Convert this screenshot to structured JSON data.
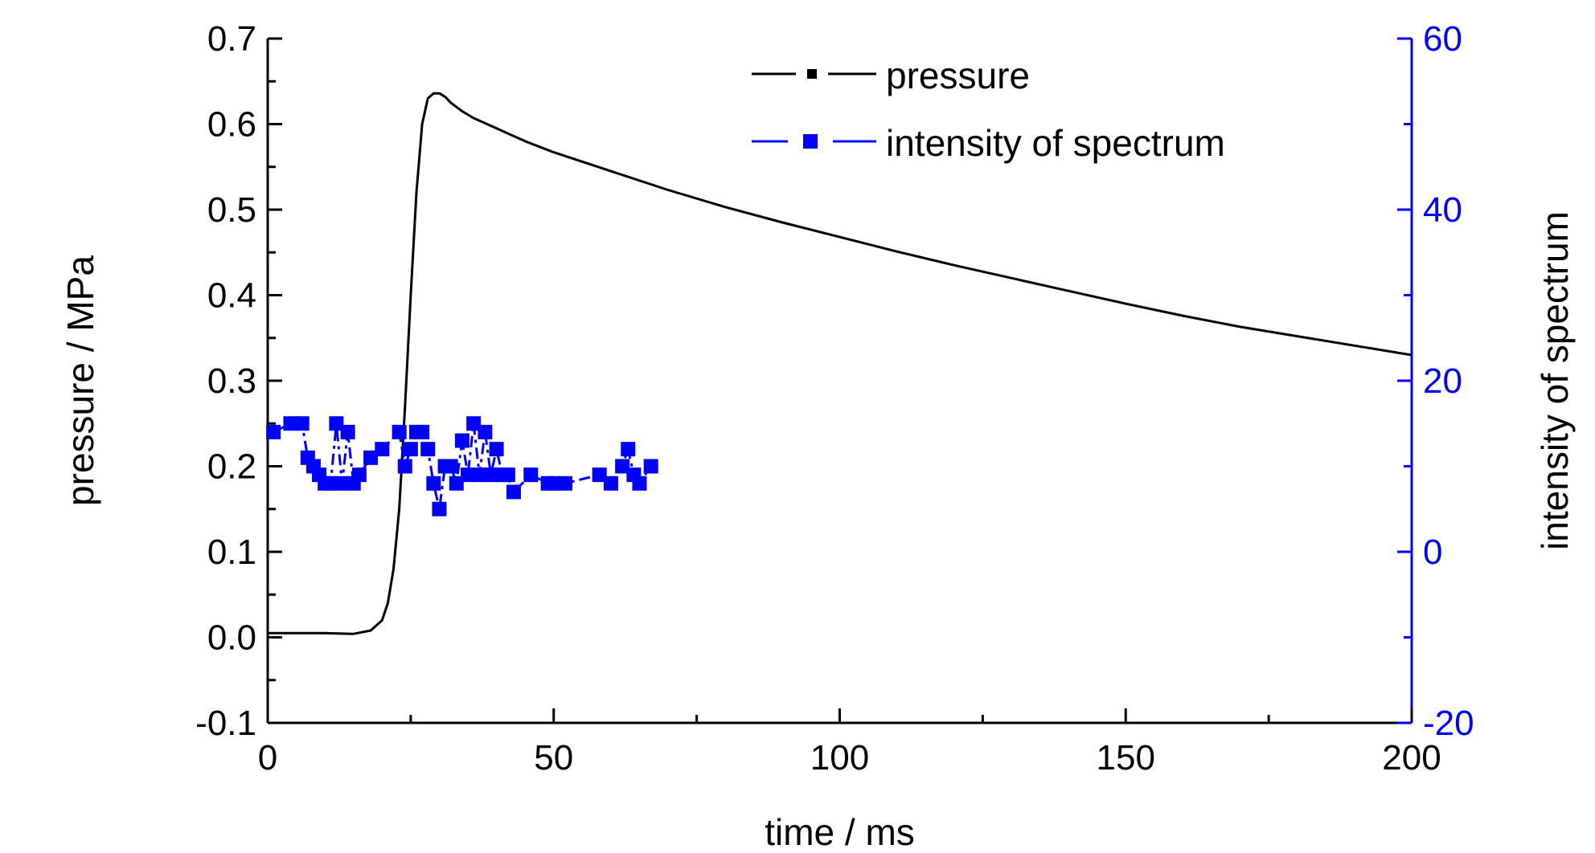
{
  "chart_data": {
    "type": "line",
    "xlabel": "time / ms",
    "ylabel_left": "pressure / MPa",
    "ylabel_right": "intensity of spectrum",
    "xlim": [
      0,
      200
    ],
    "ylim_left": [
      -0.1,
      0.7
    ],
    "ylim_right": [
      -20,
      60
    ],
    "x_ticks": [
      "0",
      "50",
      "100",
      "150",
      "200"
    ],
    "y_left_ticks": [
      "-0.1",
      "0.0",
      "0.1",
      "0.2",
      "0.3",
      "0.4",
      "0.5",
      "0.6",
      "0.7"
    ],
    "y_right_ticks": [
      "-20",
      "0",
      "20",
      "40",
      "60"
    ],
    "grid": false,
    "legend_position": "top-right",
    "colors": {
      "pressure": "#000000",
      "intensity": "#0000ff",
      "right_axis": "#0000ff"
    },
    "series": [
      {
        "name": "pressure",
        "axis": "left",
        "style": "line",
        "x": [
          0,
          5,
          10,
          15,
          18,
          20,
          21,
          22,
          23,
          24,
          25,
          26,
          27,
          28,
          29,
          30,
          31,
          32,
          34,
          36,
          40,
          45,
          50,
          60,
          70,
          80,
          90,
          100,
          110,
          120,
          130,
          140,
          150,
          160,
          170,
          180,
          190,
          200
        ],
        "y": [
          0.005,
          0.005,
          0.005,
          0.004,
          0.008,
          0.02,
          0.04,
          0.08,
          0.15,
          0.27,
          0.4,
          0.52,
          0.6,
          0.63,
          0.636,
          0.636,
          0.632,
          0.625,
          0.615,
          0.607,
          0.595,
          0.58,
          0.567,
          0.545,
          0.523,
          0.503,
          0.485,
          0.468,
          0.451,
          0.435,
          0.42,
          0.405,
          0.39,
          0.376,
          0.363,
          0.352,
          0.341,
          0.33
        ]
      },
      {
        "name": "intensity of spectrum",
        "axis": "right",
        "style": "dash-square",
        "x": [
          1,
          4,
          6,
          7,
          8,
          9,
          10,
          11,
          12,
          13,
          14,
          15,
          16,
          18,
          20,
          23,
          24,
          25,
          26,
          27,
          28,
          29,
          30,
          31,
          32,
          33,
          34,
          35,
          36,
          37,
          38,
          39,
          40,
          41,
          42,
          43,
          46,
          49,
          50,
          52,
          58,
          60,
          62,
          63,
          64,
          65,
          67
        ],
        "y": [
          14,
          15,
          15,
          11,
          10,
          9,
          8,
          8,
          15,
          8,
          14,
          8,
          9,
          11,
          12,
          14,
          10,
          12,
          14,
          14,
          12,
          8,
          5,
          10,
          10,
          8,
          13,
          9,
          15,
          9,
          14,
          9,
          12,
          9,
          9,
          7,
          9,
          8,
          8,
          8,
          9,
          8,
          10,
          12,
          9,
          8,
          10
        ]
      }
    ]
  }
}
